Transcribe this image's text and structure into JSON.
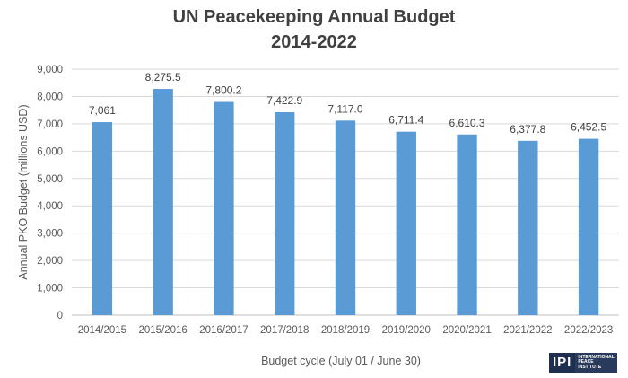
{
  "chart_data": {
    "type": "bar",
    "title_line1": "UN Peacekeeping Annual Budget",
    "title_line2": "2014-2022",
    "xlabel": "Budget cycle (July 01 / June 30)",
    "ylabel": "Annual PKO Budget (millions USD)",
    "ylim": [
      0,
      9000
    ],
    "yticks": [
      0,
      1000,
      2000,
      3000,
      4000,
      5000,
      6000,
      7000,
      8000,
      9000
    ],
    "ytick_labels": [
      "0",
      "1,000",
      "2,000",
      "3,000",
      "4,000",
      "5,000",
      "6,000",
      "7,000",
      "8,000",
      "9,000"
    ],
    "grid": true,
    "bar_color": "#5b9bd5",
    "categories": [
      "2014/2015",
      "2015/2016",
      "2016/2017",
      "2017/2018",
      "2018/2019",
      "2019/2020",
      "2020/2021",
      "2021/2022",
      "2022/2023"
    ],
    "values": [
      7061,
      8275.5,
      7800.2,
      7422.9,
      7117.0,
      6711.4,
      6610.3,
      6377.8,
      6452.5
    ],
    "data_labels": [
      "7,061",
      "8,275.5",
      "7,800.2",
      "7,422.9",
      "7,117.0",
      "6,711.4",
      "6,610.3",
      "6,377.8",
      "6,452.5"
    ]
  },
  "logo": {
    "mark": "IPI",
    "line1": "INTERNATIONAL",
    "line2": "PEACE",
    "line3": "INSTITUTE",
    "background": "#1f2f4f"
  }
}
